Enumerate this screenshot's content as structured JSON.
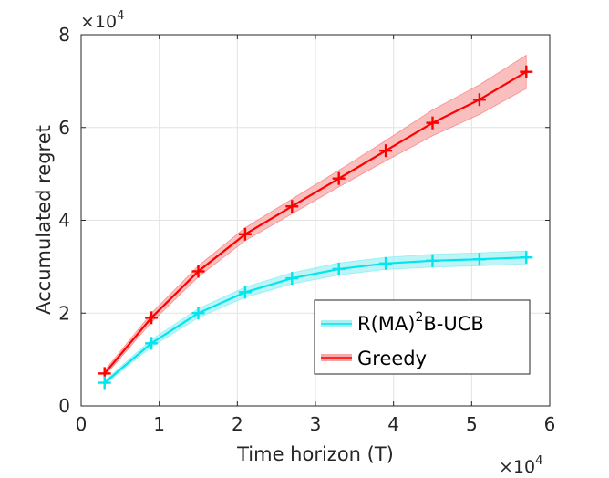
{
  "chart_data": {
    "type": "line",
    "xlabel": "Time horizon (T)",
    "ylabel": "Accumulated regret",
    "x_multiplier_label": {
      "base": "×10",
      "exponent": "4"
    },
    "y_multiplier_label": {
      "base": "×10",
      "exponent": "4"
    },
    "xlim": [
      0,
      60000
    ],
    "ylim": [
      0,
      80000
    ],
    "xticks": [
      0,
      10000,
      20000,
      30000,
      40000,
      50000,
      60000
    ],
    "xtick_labels": [
      "0",
      "1",
      "2",
      "3",
      "4",
      "5",
      "6"
    ],
    "yticks": [
      0,
      20000,
      40000,
      60000,
      80000
    ],
    "ytick_labels": [
      "0",
      "2",
      "4",
      "6",
      "8"
    ],
    "grid": true,
    "legend_position": "lower-right",
    "x": [
      3000,
      9000,
      15000,
      21000,
      27000,
      33000,
      39000,
      45000,
      51000,
      57000
    ],
    "series": [
      {
        "name": "Greedy",
        "color": "#ff0000",
        "band_color": "#f7a8a8",
        "marker": "plus",
        "values": [
          7000,
          19000,
          29000,
          37000,
          43000,
          49000,
          55000,
          61000,
          66000,
          72000
        ],
        "upper": [
          7600,
          20000,
          30200,
          38400,
          44600,
          50800,
          57200,
          63800,
          69200,
          75600
        ],
        "lower": [
          6400,
          18000,
          27800,
          35600,
          41400,
          47200,
          52800,
          58200,
          62800,
          68400
        ]
      },
      {
        "name_parts": [
          "R(MA)",
          "2",
          "B-UCB"
        ],
        "color": "#00e5ee",
        "band_color": "#a8f0f2",
        "marker": "plus",
        "values": [
          5000,
          13500,
          20000,
          24500,
          27500,
          29500,
          30700,
          31300,
          31600,
          32000
        ],
        "upper": [
          5400,
          14300,
          21000,
          25600,
          28700,
          30800,
          32000,
          32700,
          33000,
          33400
        ],
        "lower": [
          4600,
          12700,
          19000,
          23400,
          26300,
          28200,
          29400,
          29900,
          30200,
          30600
        ]
      }
    ]
  }
}
